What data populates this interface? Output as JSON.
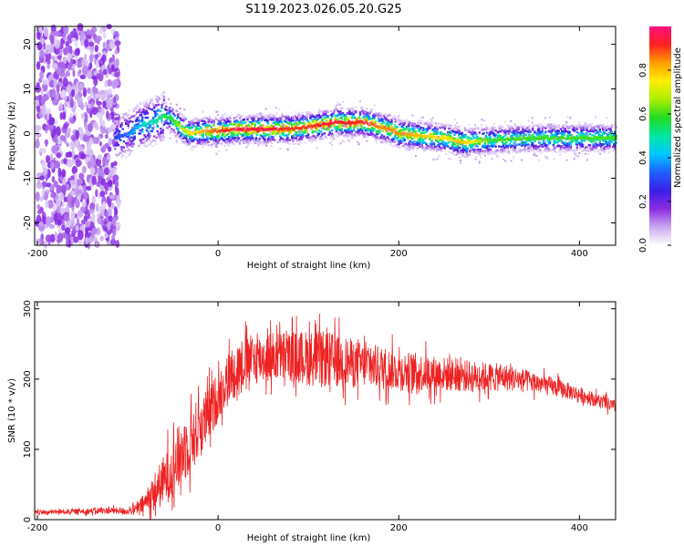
{
  "figure": {
    "title": "S119.2023.026.05.20.G25"
  },
  "chart_data": [
    {
      "type": "heatmap",
      "xlabel": "Height of straight line (km)",
      "ylabel": "Frequency (Hz)",
      "xlim": [
        -203,
        440
      ],
      "ylim": [
        -25,
        24
      ],
      "x_ticks": [
        -200,
        0,
        200,
        400
      ],
      "y_ticks": [
        -20,
        -10,
        0,
        10,
        20
      ],
      "grid": false,
      "noise_region_x": [
        -200,
        -110
      ],
      "ridge": {
        "x": [
          -115,
          -100,
          -85,
          -70,
          -60,
          -50,
          -40,
          -30,
          -20,
          0,
          20,
          50,
          80,
          100,
          130,
          160,
          180,
          200,
          220,
          250,
          270,
          300,
          340,
          380,
          440
        ],
        "freq": [
          -1,
          0,
          2,
          3,
          4,
          3,
          1,
          0,
          0.5,
          0.5,
          1,
          1,
          1,
          1.5,
          2.5,
          2.5,
          1.5,
          0,
          -0.5,
          -1,
          -2,
          -1.5,
          -1,
          -1,
          -1
        ],
        "peak_amplitude": [
          0.3,
          0.35,
          0.45,
          0.5,
          0.55,
          0.6,
          0.7,
          0.75,
          0.8,
          0.9,
          0.95,
          0.95,
          0.9,
          0.9,
          0.95,
          0.9,
          0.85,
          0.85,
          0.8,
          0.75,
          0.8,
          0.6,
          0.6,
          0.6,
          0.6
        ]
      },
      "colorbar": {
        "label": "Normalized spectral amplitude",
        "range": [
          0,
          1
        ],
        "ticks": [
          0.0,
          0.2,
          0.4,
          0.6,
          0.8
        ],
        "colors": [
          "#ffffff",
          "#c9a8f0",
          "#8a2be2",
          "#3a1ee8",
          "#2060ff",
          "#00c8ff",
          "#00e6a0",
          "#22dd22",
          "#aaee00",
          "#ffee00",
          "#ffa000",
          "#ff2020",
          "#ff1080"
        ]
      }
    },
    {
      "type": "line",
      "xlabel": "Height of straight line (km)",
      "ylabel": "SNR (10 * v/v)",
      "xlim": [
        -203,
        440
      ],
      "ylim": [
        0,
        310
      ],
      "x_ticks": [
        -200,
        0,
        200,
        400
      ],
      "y_ticks": [
        0,
        100,
        200,
        300
      ],
      "grid": false,
      "color": "#ee2222",
      "series": [
        {
          "x": [
            -203,
            -180,
            -150,
            -120,
            -100,
            -90,
            -80,
            -70,
            -60,
            -50,
            -40,
            -30,
            -20,
            -10,
            0,
            10,
            20,
            30,
            40,
            50,
            60,
            80,
            100,
            120,
            140,
            160,
            180,
            200,
            220,
            240,
            260,
            280,
            300,
            320,
            340,
            360,
            380,
            400,
            420,
            440
          ],
          "values": [
            10,
            11,
            12,
            13,
            12,
            15,
            25,
            40,
            55,
            75,
            95,
            115,
            130,
            150,
            175,
            200,
            215,
            225,
            228,
            230,
            232,
            232,
            230,
            228,
            225,
            220,
            216,
            212,
            210,
            208,
            206,
            204,
            203,
            202,
            198,
            192,
            186,
            178,
            170,
            160
          ],
          "noise_amplitude": [
            4,
            4,
            5,
            6,
            6,
            10,
            20,
            35,
            45,
            55,
            60,
            60,
            55,
            50,
            45,
            45,
            50,
            45,
            45,
            45,
            45,
            45,
            50,
            50,
            45,
            40,
            40,
            35,
            35,
            32,
            30,
            28,
            26,
            24,
            20,
            18,
            16,
            14,
            12,
            12
          ]
        }
      ]
    }
  ]
}
